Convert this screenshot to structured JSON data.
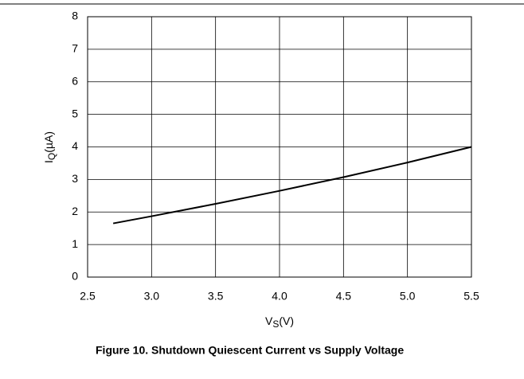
{
  "chart_data": {
    "type": "line",
    "title": "Figure 10. Shutdown Quiescent Current vs Supply Voltage",
    "x_label": {
      "main": "V",
      "sub": "S",
      "unit": "(V)"
    },
    "y_label": {
      "main": "I",
      "sub": "Q",
      "unit": "(µA)"
    },
    "x": [
      2.7,
      3.0,
      3.5,
      4.0,
      4.5,
      5.0,
      5.5
    ],
    "series": [
      {
        "name": "IQ",
        "color": "#000000",
        "values": [
          1.65,
          1.87,
          2.25,
          2.65,
          3.07,
          3.52,
          4.0
        ]
      }
    ],
    "xlim": [
      2.5,
      5.5
    ],
    "xticks": [
      2.5,
      {
        "value": 3,
        "label": "3.0"
      },
      3.5,
      {
        "value": 4,
        "label": "4.0"
      },
      4.5,
      {
        "value": 5,
        "label": "5.0"
      },
      5.5
    ],
    "ylim": [
      0,
      8
    ],
    "yticks": [
      0,
      1,
      2,
      3,
      4,
      5,
      6,
      7,
      8
    ],
    "grid": true
  }
}
